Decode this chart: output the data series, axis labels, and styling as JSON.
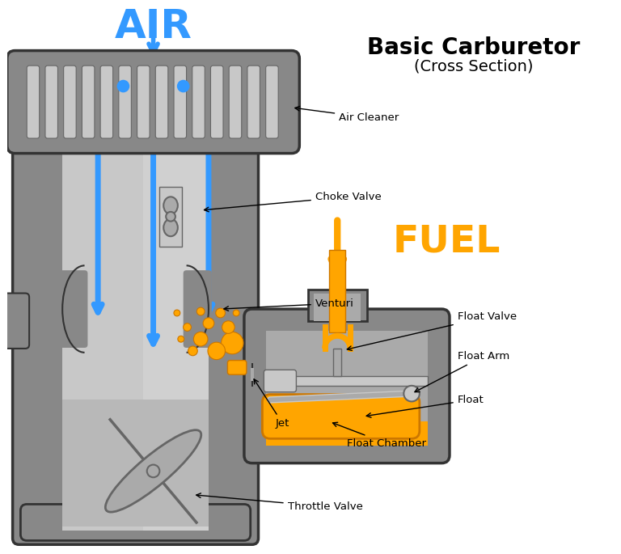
{
  "title_line1": "Basic Carburetor",
  "title_line2": "(Cross Section)",
  "air_label": "AIR",
  "fuel_label": "FUEL",
  "air_color": "#3399FF",
  "fuel_color": "#FFA500",
  "body_dark": "#666666",
  "body_mid": "#888888",
  "body_light": "#AAAAAA",
  "body_lighter": "#C8C8C8",
  "outline": "#333333",
  "bg_color": "#FFFFFF",
  "fin_dark": "#777777",
  "fin_light": "#AAAAAA"
}
